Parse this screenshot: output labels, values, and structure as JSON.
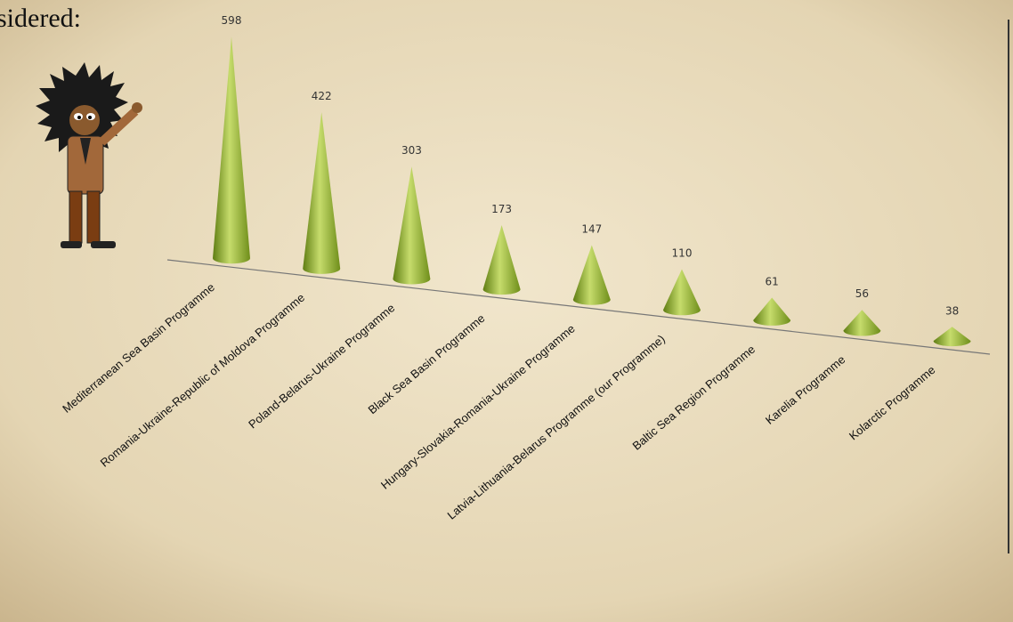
{
  "slide_text": "sidered:",
  "chart_data": {
    "type": "cone",
    "categories": [
      "Mediterranean Sea Basin Programme",
      "Romania-Ukraine-Republic of Moldova Programme",
      "Poland-Belarus-Ukraine Programme",
      "Black Sea Basin Programme",
      "Hungary-Slovakia-Romania-Ukraine Programme",
      "Latvia-Lithuania-Belarus Programme (our Programme)",
      "Baltic Sea Region Programme",
      "Karelia Programme",
      "Kolarctic Programme"
    ],
    "values": [
      598,
      422,
      303,
      173,
      147,
      110,
      61,
      56,
      38
    ],
    "color": "#8fae2c",
    "ylim": [
      0,
      600
    ]
  }
}
